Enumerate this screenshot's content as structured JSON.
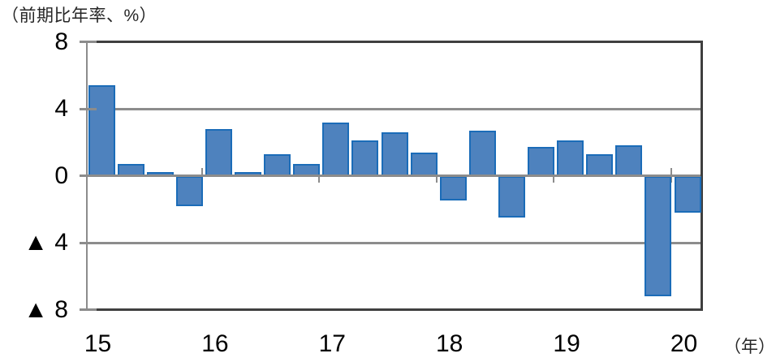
{
  "title": "（前期比年率、%）",
  "x_unit_label": "（年）",
  "colors": {
    "bar_fill": "#4e82be",
    "bar_border": "#1b6cb8",
    "gridline": "#8c8c8c",
    "frame": "#3f3f3f",
    "text": "#000000"
  },
  "chart_data": {
    "type": "bar",
    "title": "（前期比年率、%）",
    "x_unit_label": "（年）",
    "categories": [
      "2015Q1",
      "2015Q2",
      "2015Q3",
      "2015Q4",
      "2016Q1",
      "2016Q2",
      "2016Q3",
      "2016Q4",
      "2017Q1",
      "2017Q2",
      "2017Q3",
      "2017Q4",
      "2018Q1",
      "2018Q2",
      "2018Q3",
      "2018Q4",
      "2019Q1",
      "2019Q2",
      "2019Q3",
      "2019Q4",
      "2020Q1"
    ],
    "values": [
      5.4,
      0.7,
      0.2,
      -1.8,
      2.8,
      0.2,
      1.3,
      0.7,
      3.2,
      2.1,
      2.6,
      1.4,
      -1.5,
      2.7,
      -2.5,
      1.7,
      2.1,
      1.3,
      1.8,
      -7.2,
      -2.2
    ],
    "x_tick_labels": [
      "15",
      "16",
      "17",
      "18",
      "19",
      "20"
    ],
    "y_tick_labels": [
      "8",
      "4",
      "0",
      "▲ 4",
      "▲ 8"
    ],
    "y_tick_values": [
      8,
      4,
      0,
      -4,
      -8
    ],
    "ylim": [
      -8,
      8
    ],
    "xlabel": "",
    "ylabel": "（前期比年率、%）",
    "grid": "horizontal",
    "legend": "none",
    "bars_per_year": 4
  }
}
